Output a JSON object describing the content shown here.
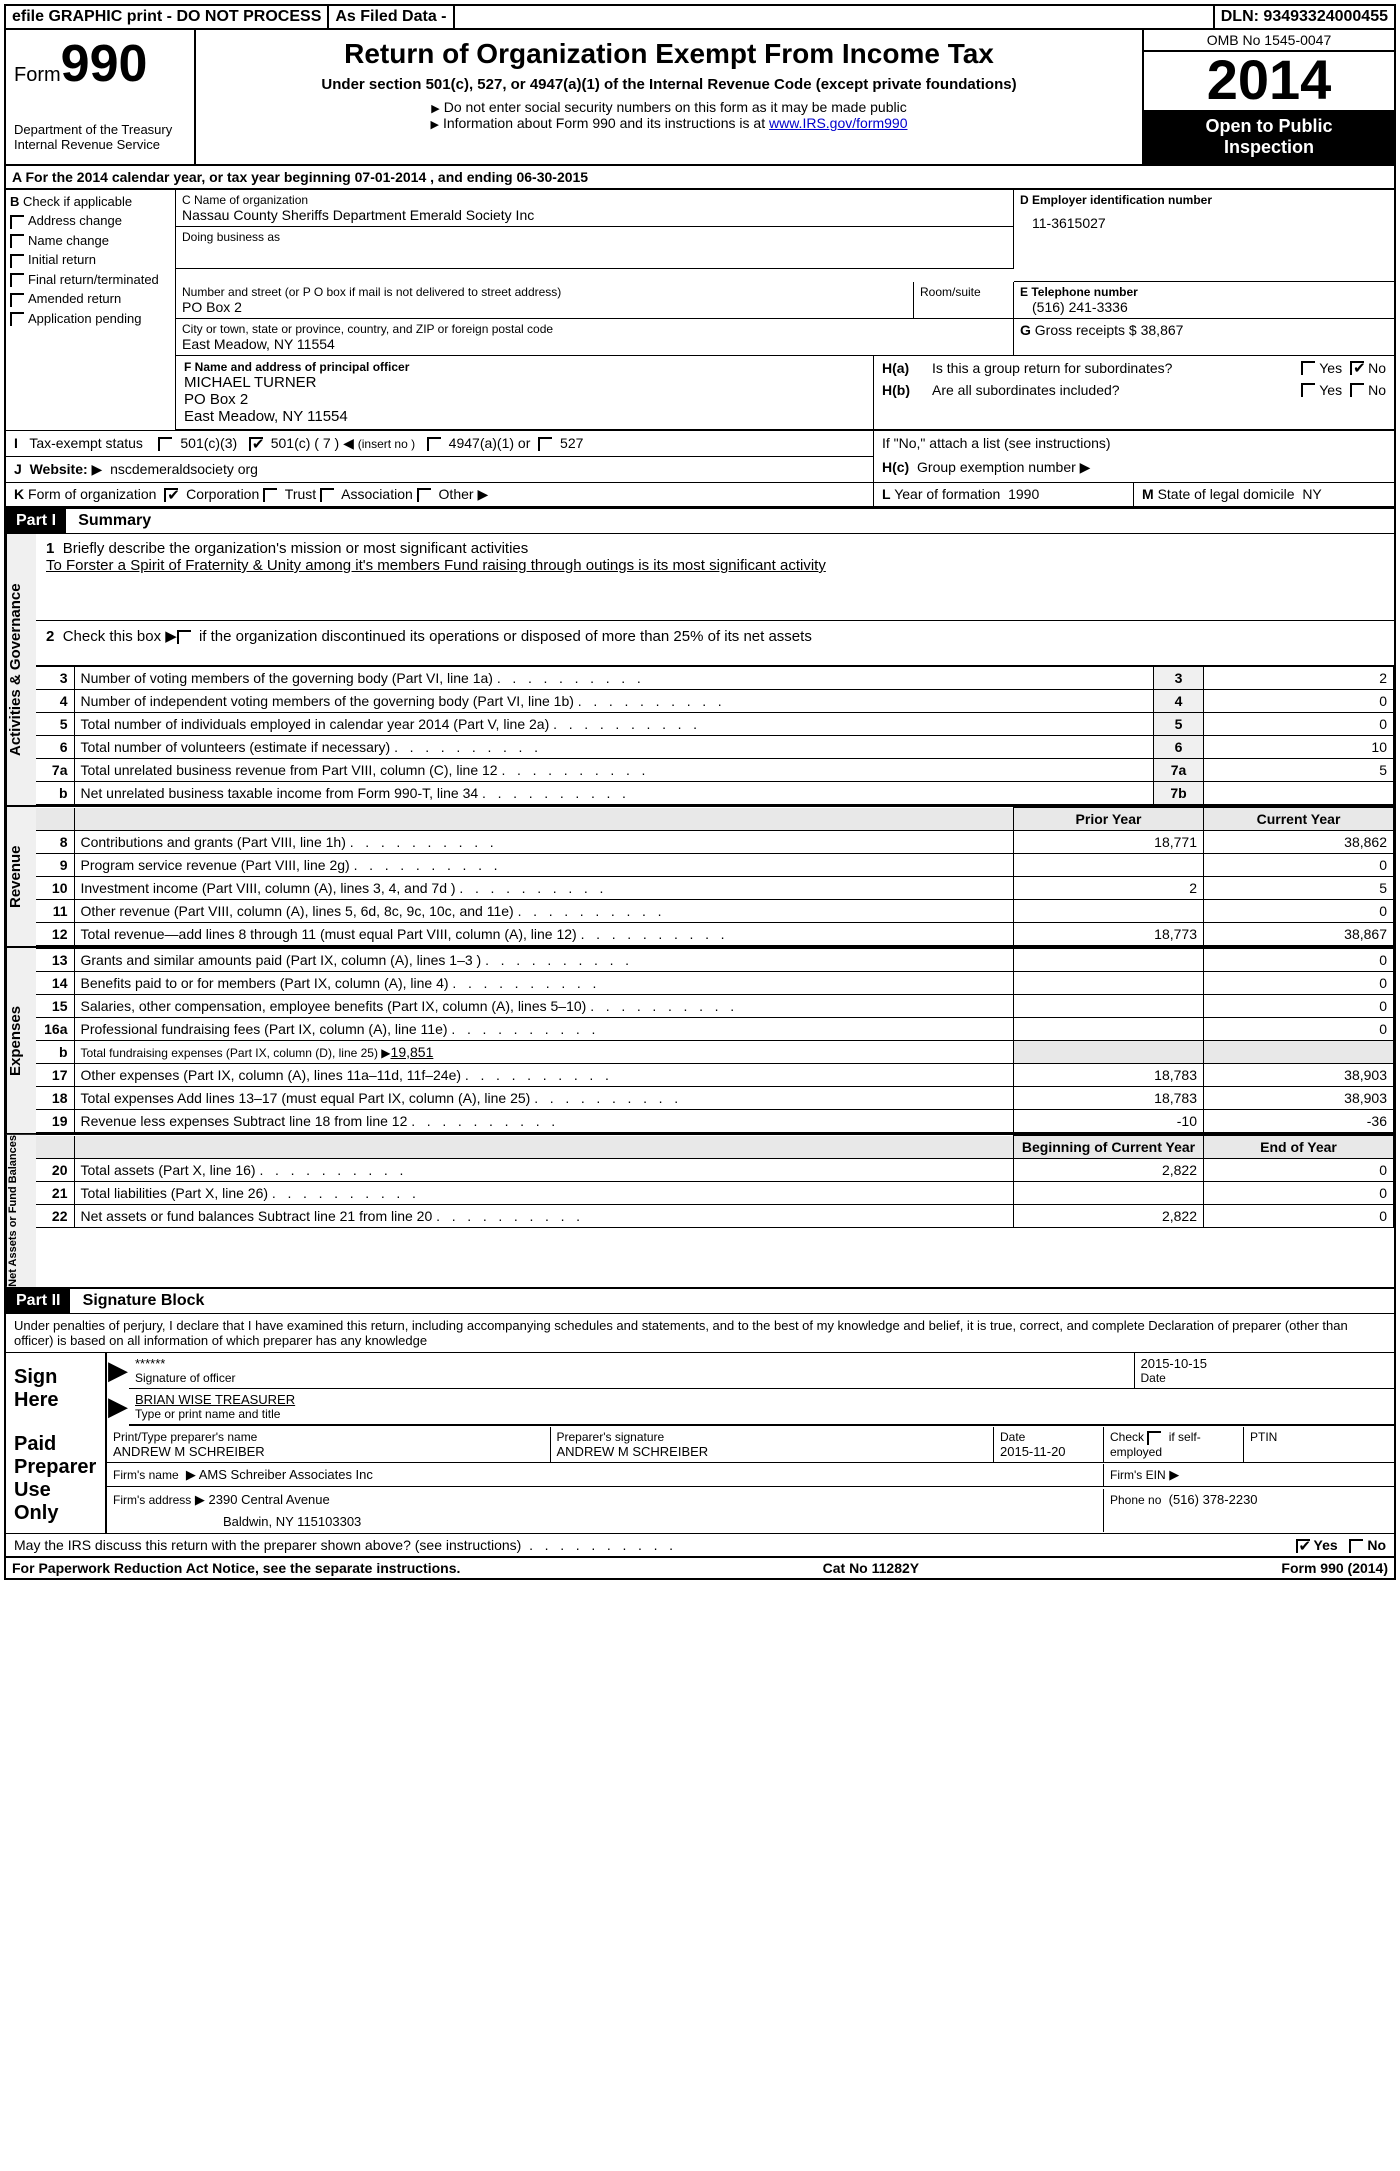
{
  "topbar": {
    "efile": "efile GRAPHIC print - DO NOT PROCESS",
    "asfiled": "As Filed Data -",
    "dln_label": "DLN:",
    "dln": "93493324000455"
  },
  "header": {
    "form_label": "Form",
    "form_number": "990",
    "dept1": "Department of the Treasury",
    "dept2": "Internal Revenue Service",
    "title": "Return of Organization Exempt From Income Tax",
    "subtitle": "Under section 501(c), 527, or 4947(a)(1) of the Internal Revenue Code (except private foundations)",
    "note1": "Do not enter social security numbers on this form as it may be made public",
    "note2_a": "Information about Form 990 and its instructions is at ",
    "note2_link": "www.IRS.gov/form990",
    "omb": "OMB No 1545-0047",
    "year": "2014",
    "open1": "Open to Public",
    "open2": "Inspection"
  },
  "sectionA": {
    "text_a": "A For the 2014 calendar year, or tax year beginning ",
    "begin": "07-01-2014",
    "text_b": "     , and ending ",
    "end": "06-30-2015"
  },
  "colB": {
    "title": "B",
    "check_if": "Check if applicable",
    "items": [
      "Address change",
      "Name change",
      "Initial return",
      "Final return/terminated",
      "Amended return",
      "Application pending"
    ]
  },
  "colC": {
    "name_label": "C Name of organization",
    "name": "Nassau County Sheriffs Department Emerald Society Inc",
    "dba_label": "Doing business as",
    "dba": "",
    "street_label": "Number and street (or P O  box if mail is not delivered to street address)",
    "street": "PO Box 2",
    "room_label": "Room/suite",
    "city_label": "City or town, state or province, country, and ZIP or foreign postal code",
    "city": "East Meadow, NY  11554"
  },
  "colD": {
    "label": "D Employer identification number",
    "ein": "11-3615027"
  },
  "colE": {
    "label": "E Telephone number",
    "phone": "(516) 241-3336"
  },
  "colG": {
    "label": "G",
    "text": "Gross receipts $",
    "val": "38,867"
  },
  "colF": {
    "label": "F   Name and address of principal officer",
    "l1": "MICHAEL TURNER",
    "l2": "PO Box 2",
    "l3": "East Meadow, NY  11554"
  },
  "colH": {
    "a_label": "H(a)",
    "a_text": "Is this a group return for subordinates?",
    "a_yes": "Yes",
    "a_no": "No",
    "b_label": "H(b)",
    "b_text": "Are all subordinates included?",
    "b_note": "If \"No,\" attach a list  (see instructions)",
    "c_label": "H(c)",
    "c_text": "Group exemption number"
  },
  "rowI": {
    "label": "I",
    "text": "Tax-exempt status",
    "o1": "501(c)(3)",
    "o2": "501(c) ( 7 )",
    "o2_note": "(insert no )",
    "o3": "4947(a)(1) or",
    "o4": "527"
  },
  "rowJ": {
    "label": "J",
    "text": "Website:",
    "val": "nscdemeraldsociety org"
  },
  "rowK": {
    "label": "K",
    "text": "Form of organization",
    "o1": "Corporation",
    "o2": "Trust",
    "o3": "Association",
    "o4": "Other"
  },
  "rowL": {
    "label": "L",
    "text": "Year of formation",
    "val": "1990"
  },
  "rowM": {
    "label": "M",
    "text": "State of legal domicile",
    "val": "NY"
  },
  "partI": {
    "tag": "Part I",
    "title": "Summary",
    "side_act": "Activities & Governance",
    "side_rev": "Revenue",
    "side_exp": "Expenses",
    "side_net": "Net Assets or Fund Balances",
    "line1_label": "Briefly describe the organization's mission or most significant activities",
    "line1_text": "To Forster a Spirit of Fraternity & Unity among it's members  Fund raising through outings is its most significant activity",
    "line2": "Check this box",
    "line2b": "if the organization discontinued its operations or disposed of more than 25% of its net assets",
    "lines_ag": [
      {
        "n": "3",
        "d": "Number of voting members of the governing body (Part VI, line 1a)",
        "b": "3",
        "v": "2"
      },
      {
        "n": "4",
        "d": "Number of independent voting members of the governing body (Part VI, line 1b)",
        "b": "4",
        "v": "0"
      },
      {
        "n": "5",
        "d": "Total number of individuals employed in calendar year 2014 (Part V, line 2a)",
        "b": "5",
        "v": "0"
      },
      {
        "n": "6",
        "d": "Total number of volunteers (estimate if necessary)",
        "b": "6",
        "v": "10"
      },
      {
        "n": "7a",
        "d": "Total unrelated business revenue from Part VIII, column (C), line 12",
        "b": "7a",
        "v": "5"
      },
      {
        "n": "b",
        "d": "Net unrelated business taxable income from Form 990-T, line 34",
        "b": "7b",
        "v": ""
      }
    ],
    "py_label": "Prior Year",
    "cy_label": "Current Year",
    "lines_rev": [
      {
        "n": "8",
        "d": "Contributions and grants (Part VIII, line 1h)",
        "py": "18,771",
        "cy": "38,862"
      },
      {
        "n": "9",
        "d": "Program service revenue (Part VIII, line 2g)",
        "py": "",
        "cy": "0"
      },
      {
        "n": "10",
        "d": "Investment income (Part VIII, column (A), lines 3, 4, and 7d )",
        "py": "2",
        "cy": "5"
      },
      {
        "n": "11",
        "d": "Other revenue (Part VIII, column (A), lines 5, 6d, 8c, 9c, 10c, and 11e)",
        "py": "",
        "cy": "0"
      },
      {
        "n": "12",
        "d": "Total revenue—add lines 8 through 11 (must equal Part VIII, column (A), line 12)",
        "py": "18,773",
        "cy": "38,867"
      }
    ],
    "lines_exp": [
      {
        "n": "13",
        "d": "Grants and similar amounts paid (Part IX, column (A), lines 1–3 )",
        "py": "",
        "cy": "0"
      },
      {
        "n": "14",
        "d": "Benefits paid to or for members (Part IX, column (A), line 4)",
        "py": "",
        "cy": "0"
      },
      {
        "n": "15",
        "d": "Salaries, other compensation, employee benefits (Part IX, column (A), lines 5–10)",
        "py": "",
        "cy": "0"
      },
      {
        "n": "16a",
        "d": "Professional fundraising fees (Part IX, column (A), line 11e)",
        "py": "",
        "cy": "0"
      },
      {
        "n": "b",
        "d": "Total fundraising expenses (Part IX, column (D), line 25) ▶",
        "py": "",
        "cy": "",
        "inline": "19,851"
      },
      {
        "n": "17",
        "d": "Other expenses (Part IX, column (A), lines 11a–11d, 11f–24e)",
        "py": "18,783",
        "cy": "38,903"
      },
      {
        "n": "18",
        "d": "Total expenses  Add lines 13–17 (must equal Part IX, column (A), line 25)",
        "py": "18,783",
        "cy": "38,903"
      },
      {
        "n": "19",
        "d": "Revenue less expenses  Subtract line 18 from line 12",
        "py": "-10",
        "cy": "-36"
      }
    ],
    "boy_label": "Beginning of Current Year",
    "eoy_label": "End of Year",
    "lines_net": [
      {
        "n": "20",
        "d": "Total assets (Part X, line 16)",
        "py": "2,822",
        "cy": "0"
      },
      {
        "n": "21",
        "d": "Total liabilities (Part X, line 26)",
        "py": "",
        "cy": "0"
      },
      {
        "n": "22",
        "d": "Net assets or fund balances  Subtract line 21 from line 20",
        "py": "2,822",
        "cy": "0"
      }
    ]
  },
  "partII": {
    "tag": "Part II",
    "title": "Signature Block",
    "perjury": "Under penalties of perjury, I declare that I have examined this return, including accompanying schedules and statements, and to the best of my knowledge and belief, it is true, correct, and complete  Declaration of preparer (other than officer) is based on all information of which preparer has any knowledge",
    "sign_here": "Sign Here",
    "sig_mask": "******",
    "sig_label": "Signature of officer",
    "sig_date": "2015-10-15",
    "date_label": "Date",
    "officer_name": "BRIAN WISE TREASURER",
    "officer_label": "Type or print name and title",
    "paid_prep": "Paid Preparer Use Only",
    "prep_name_label": "Print/Type preparer's name",
    "prep_name": "ANDREW M SCHREIBER",
    "prep_sig_label": "Preparer's signature",
    "prep_sig": "ANDREW M SCHREIBER",
    "prep_date_label": "Date",
    "prep_date": "2015-11-20",
    "prep_check": "Check",
    "prep_self": "if self-employed",
    "ptin_label": "PTIN",
    "firm_name_label": "Firm's name",
    "firm_name": "AMS Schreiber Associates Inc",
    "firm_ein_label": "Firm's EIN",
    "firm_addr_label": "Firm's address",
    "firm_addr1": "2390 Central Avenue",
    "firm_addr2": "Baldwin, NY  115103303",
    "firm_phone_label": "Phone no",
    "firm_phone": "(516) 378-2230",
    "irs_discuss": "May the IRS discuss this return with the preparer shown above? (see instructions)",
    "yes": "Yes",
    "no": "No"
  },
  "footer": {
    "left": "For Paperwork Reduction Act Notice, see the separate instructions.",
    "mid": "Cat No  11282Y",
    "right": "Form 990 (2014)"
  }
}
